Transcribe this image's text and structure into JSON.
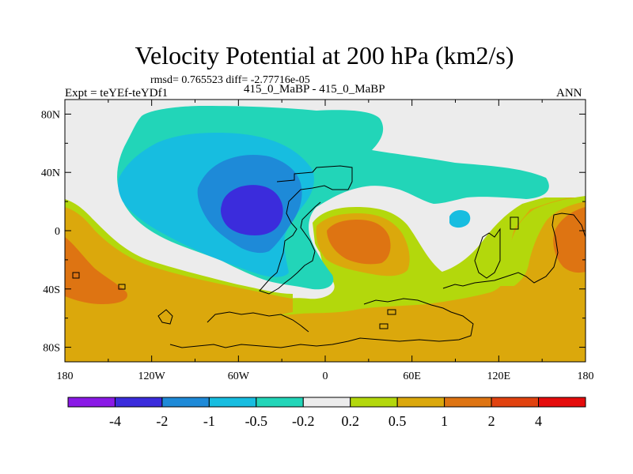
{
  "chart_data": {
    "type": "heatmap",
    "subtype": "filled-contour-map",
    "title": "Velocity Potential at 200 hPa (km2/s)",
    "stats_label": "rmsd= 0.765523 diff= -2.77716e-05",
    "left_label": "Expt = teYEf-teYDf1",
    "center_label": "415_0_MaBP - 415_0_MaBP",
    "right_label": "ANN",
    "xlim": [
      -180,
      180
    ],
    "ylim": [
      -90,
      90
    ],
    "x_ticks": [
      {
        "value": -180,
        "label": "180"
      },
      {
        "value": -120,
        "label": "120W"
      },
      {
        "value": -60,
        "label": "60W"
      },
      {
        "value": 0,
        "label": "0"
      },
      {
        "value": 60,
        "label": "60E"
      },
      {
        "value": 120,
        "label": "120E"
      },
      {
        "value": 180,
        "label": "180"
      }
    ],
    "y_ticks": [
      {
        "value": 80,
        "label": "80N"
      },
      {
        "value": 40,
        "label": "40N"
      },
      {
        "value": 0,
        "label": "0"
      },
      {
        "value": -40,
        "label": "40S"
      },
      {
        "value": -80,
        "label": "80S"
      }
    ],
    "contour_levels": [
      "-4",
      "-2",
      "-1",
      "-0.5",
      "-0.2",
      "0.2",
      "0.5",
      "1",
      "2",
      "4"
    ],
    "colorbar_colors": [
      "#8a19e6",
      "#3b2cdc",
      "#1e8ad8",
      "#17bde0",
      "#22d5b8",
      "#ececec",
      "#b3d80c",
      "#dba80c",
      "#de7412",
      "#e1420f",
      "#e50c0c"
    ],
    "fill_colors": {
      "c_neg4": "#3b2cdc",
      "c_neg2": "#1e8ad8",
      "c_neg1": "#17bde0",
      "c_neg05": "#22d5b8",
      "c_zero": "#ececec",
      "c_pos02": "#b3d80c",
      "c_pos05": "#dba80c",
      "c_pos1": "#de7412"
    }
  }
}
